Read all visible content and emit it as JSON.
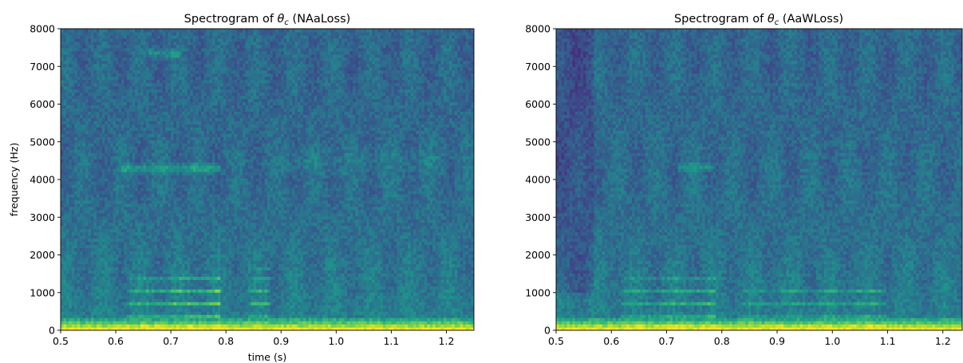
{
  "chart_data": [
    {
      "type": "heatmap",
      "title_main": "Spectrogram of ",
      "title_symbol": "θ",
      "title_subscript": "c",
      "title_suffix": " (NAaLoss)",
      "xlabel": "time (s)",
      "ylabel": "frequency (Hz)",
      "xlim": [
        0.5,
        1.25
      ],
      "ylim": [
        0,
        8000
      ],
      "xticks": [
        "0.5",
        "0.6",
        "0.7",
        "0.8",
        "0.9",
        "1.0",
        "1.1",
        "1.2"
      ],
      "yticks": [
        "0",
        "1000",
        "2000",
        "3000",
        "4000",
        "5000",
        "6000",
        "7000",
        "8000"
      ],
      "colormap": "viridis",
      "features": [
        {
          "kind": "harmonics",
          "t_start": 0.62,
          "t_end": 0.79,
          "f_min": 200,
          "f_max": 1400,
          "intensity": 0.95
        },
        {
          "kind": "harmonics",
          "t_start": 0.84,
          "t_end": 0.88,
          "f_min": 300,
          "f_max": 1600,
          "intensity": 0.7
        },
        {
          "kind": "formant",
          "t_start": 0.61,
          "t_end": 0.79,
          "f_center": 4300,
          "intensity": 0.75
        },
        {
          "kind": "formant",
          "t_start": 0.66,
          "t_end": 0.72,
          "f_center": 7350,
          "intensity": 0.6
        },
        {
          "kind": "band",
          "t_start": 0.9,
          "t_end": 1.2,
          "f_center": 4500,
          "intensity": 0.45
        },
        {
          "kind": "low_energy",
          "t_start": 0.5,
          "t_end": 1.25,
          "f_min": 0,
          "f_max": 300,
          "intensity": 1.0
        }
      ]
    },
    {
      "type": "heatmap",
      "title_main": "Spectrogram of ",
      "title_symbol": "θ",
      "title_subscript": "c",
      "title_suffix": " (AaWLoss)",
      "xlabel": "",
      "ylabel": "",
      "xlim": [
        0.5,
        1.235
      ],
      "ylim": [
        0,
        8000
      ],
      "xticks": [
        "0.5",
        "0.6",
        "0.7",
        "0.8",
        "0.9",
        "1.0",
        "1.1",
        "1.2"
      ],
      "yticks": [
        "0",
        "1000",
        "2000",
        "3000",
        "4000",
        "5000",
        "6000",
        "7000",
        "8000"
      ],
      "colormap": "viridis",
      "features": [
        {
          "kind": "harmonics",
          "t_start": 0.62,
          "t_end": 0.79,
          "f_min": 200,
          "f_max": 1400,
          "intensity": 0.7
        },
        {
          "kind": "harmonics",
          "t_start": 0.84,
          "t_end": 1.1,
          "f_min": 200,
          "f_max": 1200,
          "intensity": 0.55
        },
        {
          "kind": "formant",
          "t_start": 0.72,
          "t_end": 0.79,
          "f_center": 4350,
          "intensity": 0.55
        },
        {
          "kind": "dark_column",
          "t_start": 0.5,
          "t_end": 0.57,
          "f_min": 1000,
          "f_max": 8000,
          "intensity": 0.5
        },
        {
          "kind": "low_energy",
          "t_start": 0.5,
          "t_end": 1.235,
          "f_min": 0,
          "f_max": 300,
          "intensity": 1.0
        }
      ]
    }
  ]
}
